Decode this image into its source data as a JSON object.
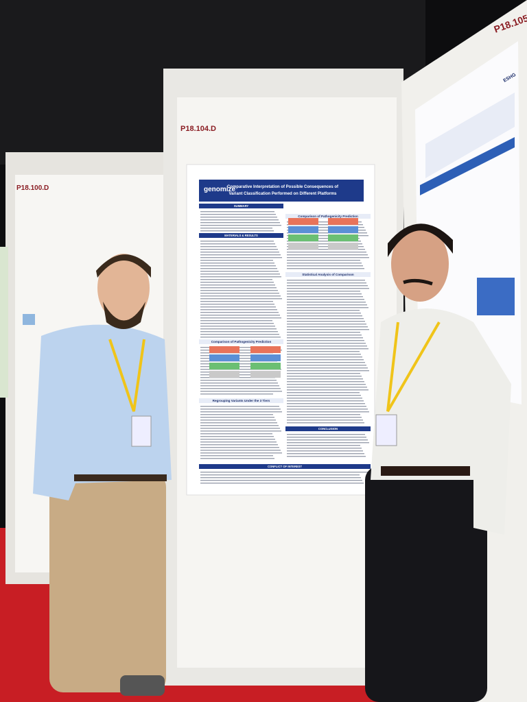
{
  "booths": [
    {
      "label": "P18.100.D"
    },
    {
      "label": "P18.104.D"
    },
    {
      "label": "P18.105"
    }
  ],
  "poster": {
    "brand": "genomize",
    "title_lines": [
      "Comparative Interpretation of Possible Consequences of",
      "Variant Classification Performed on Different Platforms"
    ],
    "sections": [
      {
        "heading": "SUMMARY",
        "style": "bar"
      },
      {
        "heading": "MATERIALS & RESULTS",
        "style": "bar"
      },
      {
        "heading": "Comparison of Pathogenicity Prediction",
        "style": "sub"
      },
      {
        "heading": "Regrouping Variants Under the 3 Tiers",
        "style": "sub"
      },
      {
        "heading": "Comparison of Pathogenicity Prediction",
        "style": "sub"
      },
      {
        "heading": "Statistical Analysis of Comparison",
        "style": "sub"
      },
      {
        "heading": "CONCLUSION",
        "style": "bar"
      },
      {
        "heading": "CONFLICT OF INTEREST",
        "style": "bar"
      }
    ]
  },
  "right_poster": {
    "brand": "ESHG"
  }
}
